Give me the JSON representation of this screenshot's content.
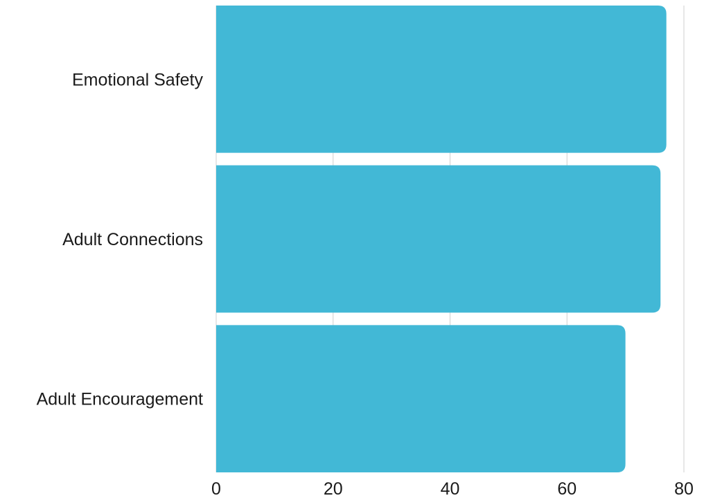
{
  "chart_data": {
    "type": "bar",
    "orientation": "horizontal",
    "categories": [
      "Emotional Safety",
      "Adult Connections",
      "Adult Encouragement"
    ],
    "values": [
      77,
      76,
      70
    ],
    "title": "",
    "xlabel": "",
    "ylabel": "",
    "xlim": [
      0,
      80
    ],
    "x_ticks": [
      0,
      20,
      40,
      60,
      80
    ],
    "grid": "vertical",
    "legend": "none",
    "bar_color": "#42b8d6"
  }
}
